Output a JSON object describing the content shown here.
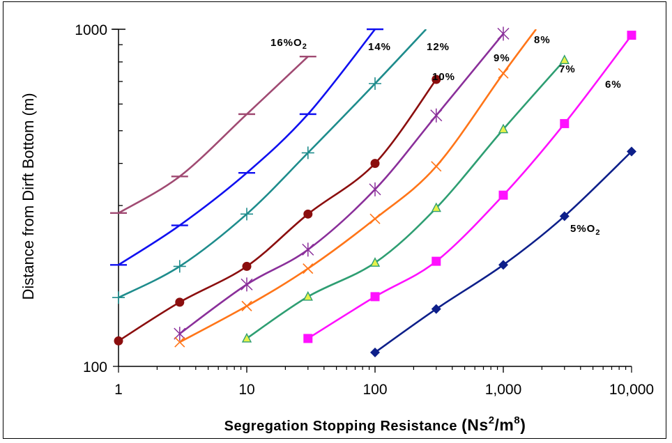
{
  "chart_data": {
    "type": "line",
    "x_scale": "log",
    "y_scale": "log",
    "xlim": [
      1,
      10000
    ],
    "ylim": [
      100,
      1000
    ],
    "xlabel": "Segregation Stopping Resistance (Ns²/m⁸)",
    "xlabel_main": "Segregation Stopping Resistance ",
    "xlabel_unit": "(Ns",
    "xlabel_sup1": "2",
    "xlabel_mid": "/m",
    "xlabel_sup2": "8",
    "xlabel_end": ")",
    "ylabel": "Distance from Dirft Bottom (m)",
    "x_ticks": [
      1,
      10,
      100,
      1000,
      10000
    ],
    "x_tick_labels": [
      "1",
      "10",
      "100",
      "1,000",
      "10,000"
    ],
    "y_ticks": [
      100,
      1000
    ],
    "y_tick_labels": [
      "100",
      "1000"
    ],
    "grid": "none",
    "legend": "none",
    "series": [
      {
        "name": "16%O₂",
        "label": "16%O",
        "label_sub": "2",
        "color": "#a04a72",
        "marker": "dash",
        "x": [
          1,
          3,
          10,
          30
        ],
        "y": [
          285,
          366,
          560,
          830
        ]
      },
      {
        "name": "14%",
        "label": "14%",
        "color": "#1010f0",
        "marker": "dash",
        "x": [
          1,
          3,
          10,
          30,
          100
        ],
        "y": [
          200,
          262,
          375,
          560,
          1000
        ]
      },
      {
        "name": "12%",
        "label": "12%",
        "color": "#1e8c8c",
        "marker": "plus",
        "x": [
          1,
          3,
          10,
          30,
          100,
          250
        ],
        "y": [
          160,
          198,
          283,
          430,
          690,
          1000
        ]
      },
      {
        "name": "10%",
        "label": "10%",
        "color": "#8b0e0e",
        "marker": "circle",
        "x": [
          1,
          3,
          10,
          30,
          100,
          300
        ],
        "y": [
          119,
          155,
          198,
          283,
          400,
          710
        ]
      },
      {
        "name": "9%",
        "label": "9%",
        "color": "#8a2f9a",
        "marker": "star",
        "x": [
          3,
          10,
          30,
          100,
          300,
          1000
        ],
        "y": [
          125,
          175,
          222,
          335,
          555,
          970
        ]
      },
      {
        "name": "8%",
        "label": "8%",
        "color": "#ff7518",
        "marker": "x",
        "x": [
          3,
          10,
          30,
          100,
          300,
          1000,
          1800
        ],
        "y": [
          118,
          151,
          195,
          274,
          392,
          740,
          1000
        ]
      },
      {
        "name": "7%",
        "label": "7%",
        "color": "#2e9e72",
        "marker": "triangle",
        "x": [
          10,
          30,
          100,
          300,
          1000,
          3000
        ],
        "y": [
          121,
          161,
          203,
          295,
          505,
          810
        ]
      },
      {
        "name": "6%",
        "label": "6%",
        "color": "#ff10ff",
        "marker": "square",
        "x": [
          30,
          100,
          300,
          1000,
          3000,
          10000
        ],
        "y": [
          121,
          161,
          205,
          322,
          525,
          960
        ]
      },
      {
        "name": "5%O₂",
        "label": "5%O",
        "label_sub": "2",
        "color": "#0d1f8a",
        "marker": "diamond",
        "x": [
          100,
          300,
          1000,
          3000,
          10000
        ],
        "y": [
          110,
          148,
          200,
          279,
          434
        ]
      }
    ]
  }
}
